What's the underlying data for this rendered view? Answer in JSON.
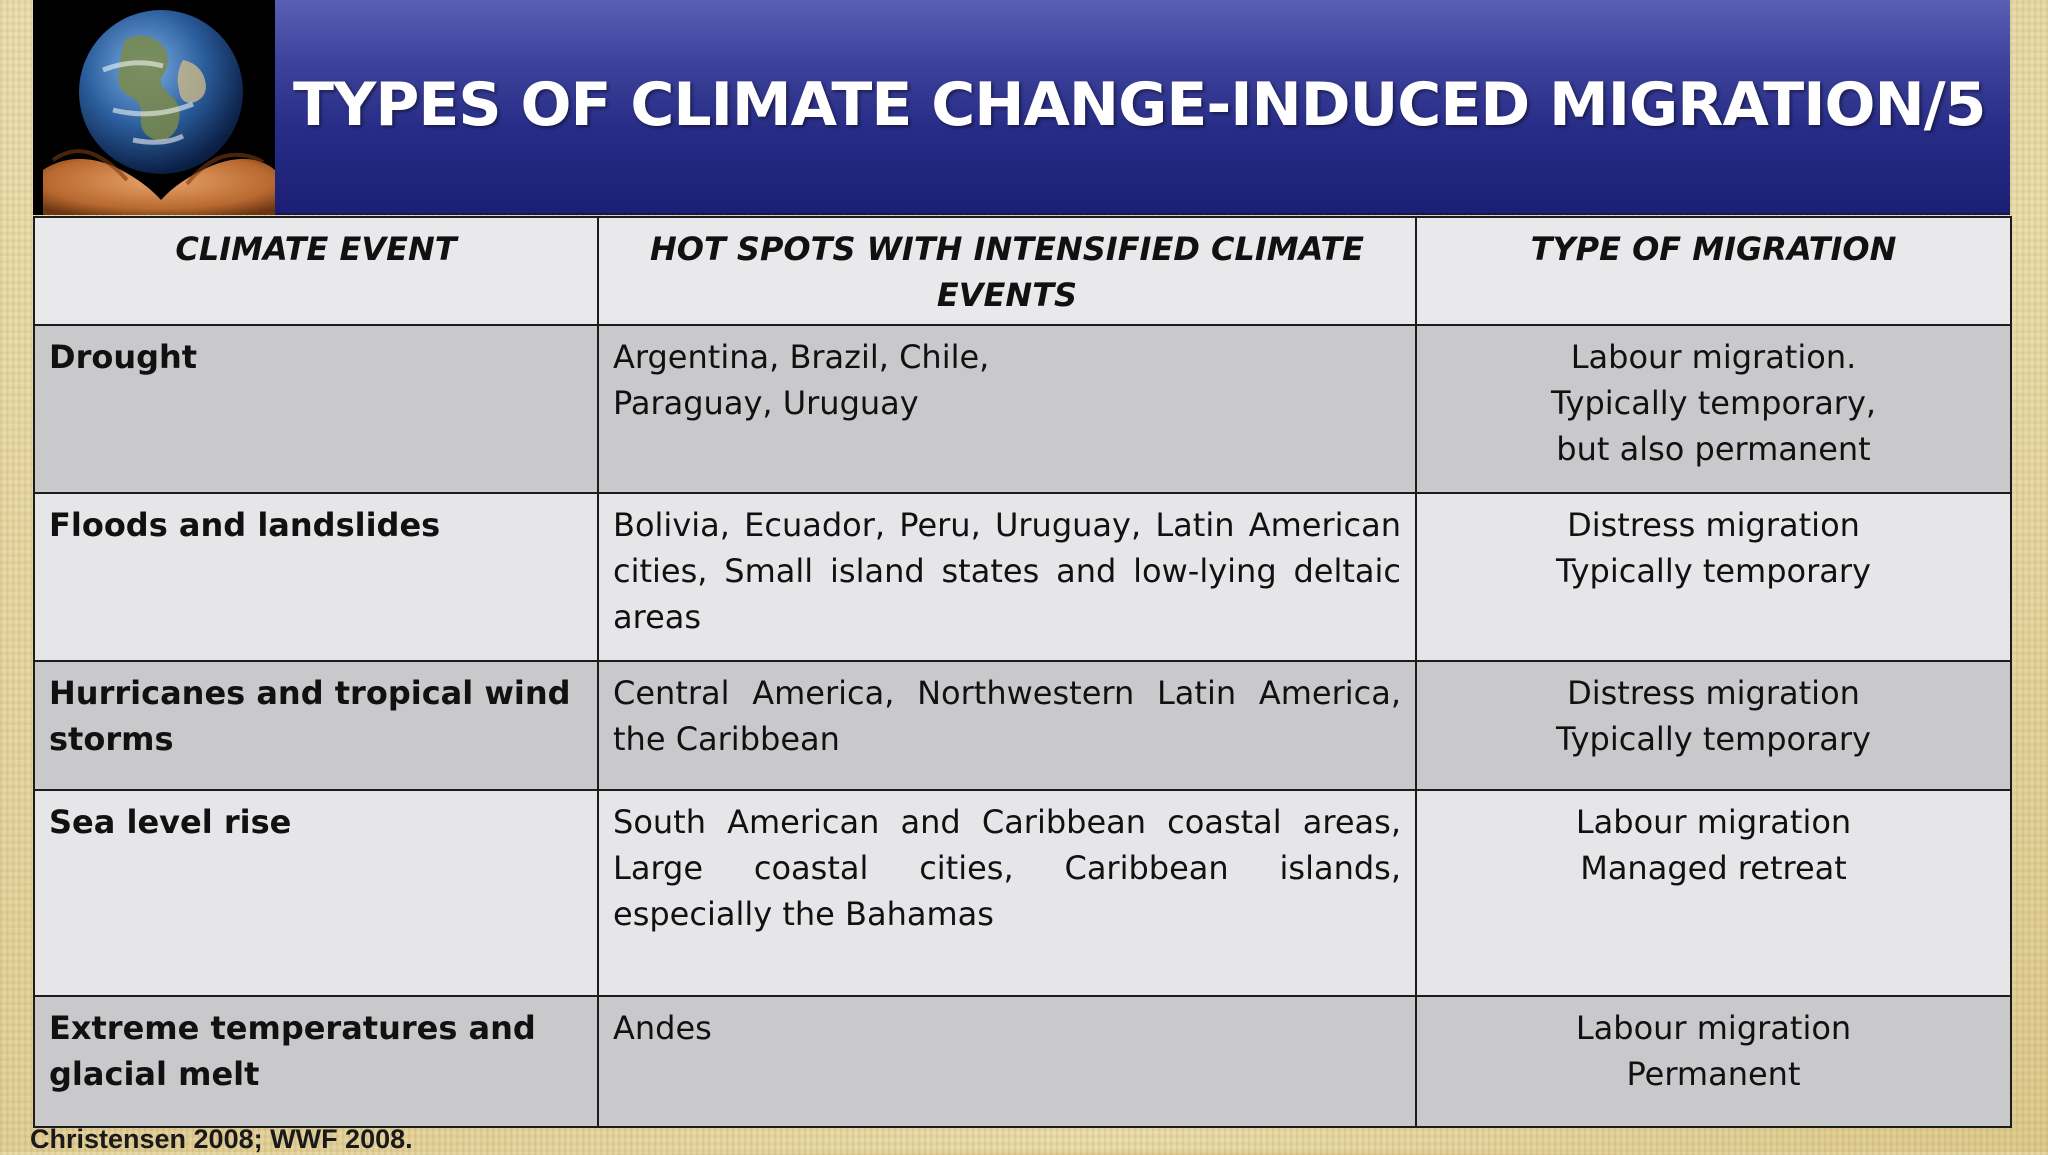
{
  "title": "TYPES OF CLIMATE CHANGE-INDUCED MIGRATION/5",
  "table": {
    "headers": [
      "CLIMATE EVENT",
      "HOT SPOTS WITH INTENSIFIED CLIMATE EVENTS",
      "TYPE OF MIGRATION"
    ],
    "rows": [
      {
        "event": "Drought",
        "hotspots": [
          "Argentina, Brazil, Chile,",
          "Paraguay, Uruguay"
        ],
        "migration": [
          "Labour migration.",
          "Typically temporary,",
          "but also permanent"
        ]
      },
      {
        "event": "Floods and landslides",
        "hotspots": [
          "Bolivia, Ecuador, Peru, Uruguay, Latin American cities, Small island states and low-lying deltaic areas"
        ],
        "migration": [
          "Distress migration",
          "Typically temporary"
        ]
      },
      {
        "event": "Hurricanes and tropical wind storms",
        "hotspots": [
          "Central America, Northwestern Latin America, the Caribbean"
        ],
        "migration": [
          "Distress migration",
          "Typically temporary"
        ]
      },
      {
        "event": "Sea level rise",
        "hotspots": [
          "South American and Caribbean coastal areas, Large coastal cities, Caribbean islands, especially the Bahamas"
        ],
        "migration": [
          "Labour migration",
          "Managed retreat"
        ]
      },
      {
        "event": "Extreme temperatures and glacial melt",
        "hotspots": [
          "Andes"
        ],
        "migration": [
          "Labour migration",
          "Permanent"
        ]
      }
    ]
  },
  "source": "Christensen 2008; WWF 2008."
}
